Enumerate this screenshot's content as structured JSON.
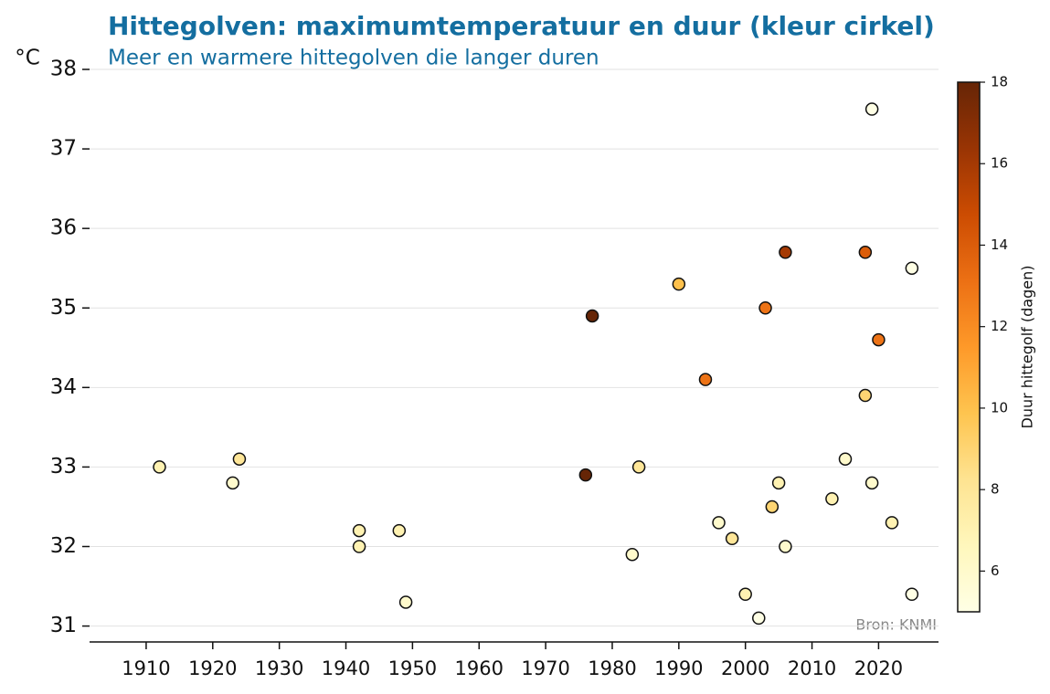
{
  "chart_data": {
    "type": "scatter",
    "title": "Hittegolven: maximumtemperatuur en duur (kleur cirkel)",
    "subtitle": "Meer en warmere hittegolven die langer duren",
    "y_label": "°C",
    "colorbar_label": "Duur hittegolf (dagen)",
    "annotation": "Bron: KNMI",
    "colormap": "YlOrBr",
    "x": [
      1912,
      1923,
      1924,
      1942,
      1942,
      1948,
      1949,
      1977,
      1976,
      1984,
      1983,
      1990,
      1994,
      1996,
      1998,
      2000,
      2002,
      2003,
      2006,
      2004,
      2005,
      2006,
      2013,
      2015,
      2018,
      2018,
      2019,
      2019,
      2020,
      2022,
      2025,
      2025
    ],
    "values": [
      33.0,
      32.8,
      33.1,
      32.2,
      32.0,
      32.2,
      31.3,
      34.9,
      32.9,
      33.0,
      31.9,
      35.3,
      34.1,
      32.3,
      32.1,
      31.4,
      31.1,
      35.0,
      35.7,
      32.5,
      32.8,
      32.0,
      32.6,
      33.1,
      35.7,
      33.9,
      37.5,
      32.8,
      34.6,
      32.3,
      35.5,
      31.4
    ],
    "duration": [
      7,
      6,
      8,
      7,
      7,
      7,
      6,
      18,
      18,
      8,
      6,
      10,
      13,
      6,
      8,
      7,
      5,
      13,
      16,
      9,
      7,
      6,
      7,
      6,
      14,
      9,
      5,
      6,
      13,
      7,
      5,
      5
    ],
    "xlim": [
      1901.5,
      2029
    ],
    "ylim": [
      30.8,
      38
    ],
    "xticks": [
      1910,
      1920,
      1930,
      1940,
      1950,
      1960,
      1970,
      1980,
      1990,
      2000,
      2010,
      2020
    ],
    "yticks": [
      31,
      32,
      33,
      34,
      35,
      36,
      37,
      38
    ],
    "clim": [
      5,
      18
    ],
    "cticks": [
      6,
      8,
      10,
      12,
      14,
      16,
      18
    ],
    "grid": true
  }
}
